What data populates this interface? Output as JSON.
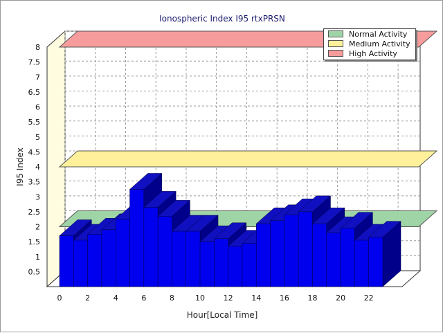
{
  "chart_data": {
    "type": "bar",
    "title": "Ionospheric Index I95 rtxPRSN",
    "xlabel": "Hour[Local Time]",
    "ylabel": "I95 Index",
    "x": [
      0,
      1,
      2,
      3,
      4,
      5,
      6,
      7,
      8,
      9,
      10,
      11,
      12,
      13,
      14,
      15,
      16,
      17,
      18,
      19,
      20,
      21,
      22
    ],
    "values": [
      1.7,
      1.55,
      1.75,
      1.9,
      2.25,
      3.25,
      2.65,
      2.35,
      1.85,
      1.85,
      1.5,
      1.6,
      1.35,
      1.45,
      2.1,
      2.2,
      2.4,
      2.5,
      2.1,
      1.8,
      1.95,
      1.55,
      1.65
    ],
    "ylim": [
      0,
      8
    ],
    "yticks": [
      "0.5",
      "1",
      "1.5",
      "2",
      "2.5",
      "3",
      "3.5",
      "4",
      "4.5",
      "5",
      "5.5",
      "6",
      "6.5",
      "7",
      "7.5",
      "8"
    ],
    "xticks": [
      "0",
      "2",
      "4",
      "6",
      "8",
      "10",
      "12",
      "14",
      "16",
      "18",
      "20",
      "22"
    ],
    "bands": [
      {
        "name": "Normal Activity",
        "value": 2,
        "color": "#9fd4a6"
      },
      {
        "name": "Medium Activity",
        "value": 4,
        "color": "#fff19c"
      },
      {
        "name": "High Activity",
        "value": 8,
        "color": "#f79c9c"
      }
    ],
    "bar_color": "#0000ee",
    "bar_side_color": "#00008b",
    "bar_top_color": "#1010c0",
    "grid": true,
    "legend": "top-right"
  }
}
